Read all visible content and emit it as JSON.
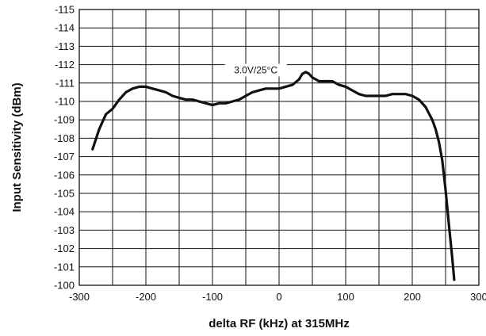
{
  "chart_data": {
    "type": "line",
    "title": "",
    "xlabel": "delta RF (kHz) at 315MHz",
    "ylabel": "Input Sensitivity (dBm)",
    "xlim": [
      -300,
      300
    ],
    "ylim": [
      -115,
      -100
    ],
    "y_axis_inverted": true,
    "grid": true,
    "legend": "none",
    "x_ticks": [
      -300,
      -200,
      -100,
      0,
      100,
      200,
      300
    ],
    "x_tick_labels": [
      "-300",
      "-200",
      "-100",
      "0",
      "100",
      "200",
      "300"
    ],
    "y_ticks": [
      -115,
      -114,
      -113,
      -112,
      -111,
      -110,
      -109,
      -108,
      -107,
      -106,
      -105,
      -104,
      -103,
      -102,
      -101,
      -100
    ],
    "y_tick_labels": [
      "-115",
      "-114",
      "-113",
      "-112",
      "-111",
      "-110",
      "-109",
      "-108",
      "-107",
      "-106",
      "-105",
      "-104",
      "-103",
      "-102",
      "-101",
      "-100"
    ],
    "annotation": "3.0V/25°C",
    "line_color": "#111111",
    "series": [
      {
        "x": [
          -280,
          -270,
          -260,
          -250,
          -240,
          -230,
          -220,
          -210,
          -200,
          -190,
          -180,
          -170,
          -160,
          -150,
          -140,
          -130,
          -120,
          -110,
          -100,
          -90,
          -80,
          -70,
          -60,
          -50,
          -40,
          -30,
          -20,
          -10,
          0,
          10,
          20,
          30,
          35,
          40,
          45,
          50,
          60,
          70,
          80,
          90,
          100,
          110,
          120,
          130,
          140,
          150,
          160,
          170,
          180,
          190,
          200,
          210,
          220,
          230,
          235,
          240,
          245,
          250,
          255,
          260,
          263
        ],
        "y": [
          -107.4,
          -108.5,
          -109.3,
          -109.6,
          -110.1,
          -110.5,
          -110.7,
          -110.8,
          -110.8,
          -110.7,
          -110.6,
          -110.5,
          -110.3,
          -110.2,
          -110.1,
          -110.1,
          -110.0,
          -109.9,
          -109.8,
          -109.9,
          -109.9,
          -110.0,
          -110.1,
          -110.3,
          -110.5,
          -110.6,
          -110.7,
          -110.7,
          -110.7,
          -110.8,
          -110.9,
          -111.2,
          -111.5,
          -111.6,
          -111.5,
          -111.3,
          -111.1,
          -111.1,
          -111.1,
          -110.9,
          -110.8,
          -110.6,
          -110.4,
          -110.3,
          -110.3,
          -110.3,
          -110.3,
          -110.4,
          -110.4,
          -110.4,
          -110.3,
          -110.1,
          -109.7,
          -109.0,
          -108.5,
          -107.8,
          -106.8,
          -105.2,
          -103.3,
          -101.5,
          -100.3
        ]
      }
    ]
  }
}
